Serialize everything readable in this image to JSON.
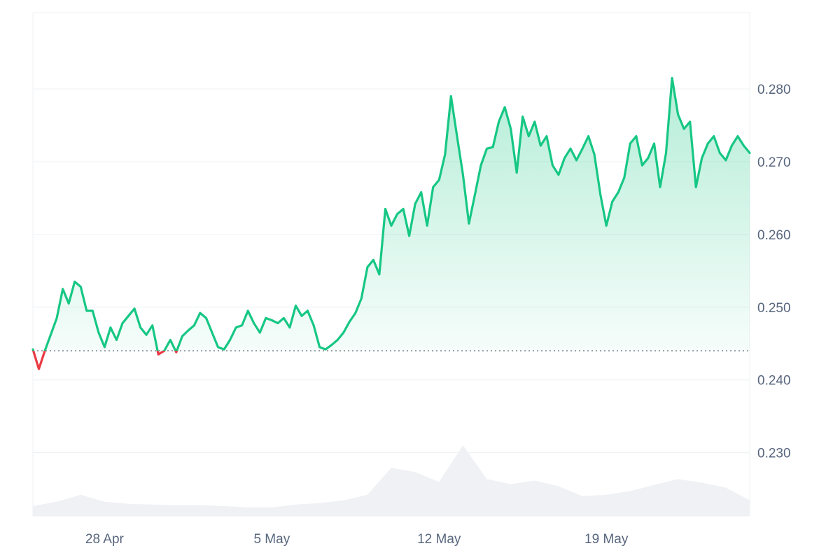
{
  "chart_data": {
    "type": "area",
    "title": "",
    "xlabel": "",
    "ylabel": "",
    "x_range": [
      "2024-04-25",
      "2024-05-25"
    ],
    "x_ticks": [
      {
        "date": "2024-04-28",
        "label": "28 Apr"
      },
      {
        "date": "2024-05-05",
        "label": "5 May"
      },
      {
        "date": "2024-05-12",
        "label": "12 May"
      },
      {
        "date": "2024-05-19",
        "label": "19 May"
      }
    ],
    "y_ticks": [
      "0.230",
      "0.240",
      "0.250",
      "0.260",
      "0.270",
      "0.280"
    ],
    "y_range": [
      0.2213,
      0.2905
    ],
    "baseline": 0.244,
    "grid": true,
    "colors": {
      "up": "#16c784",
      "down": "#ea3943",
      "volume": "#eff1f5",
      "grid": "#eef0f3"
    },
    "price_series": [
      [
        "2024-04-25",
        0.2442
      ],
      [
        "2024-04-25T06:00",
        0.2415
      ],
      [
        "2024-04-25T12:00",
        0.244
      ],
      [
        "2024-04-26",
        0.2485
      ],
      [
        "2024-04-26T06:00",
        0.2525
      ],
      [
        "2024-04-26T12:00",
        0.2505
      ],
      [
        "2024-04-26T18:00",
        0.2535
      ],
      [
        "2024-04-27",
        0.2528
      ],
      [
        "2024-04-27T06:00",
        0.2495
      ],
      [
        "2024-04-27T12:00",
        0.2495
      ],
      [
        "2024-04-27T18:00",
        0.2465
      ],
      [
        "2024-04-28",
        0.2445
      ],
      [
        "2024-04-28T06:00",
        0.2472
      ],
      [
        "2024-04-28T12:00",
        0.2455
      ],
      [
        "2024-04-28T18:00",
        0.2478
      ],
      [
        "2024-04-29",
        0.2488
      ],
      [
        "2024-04-29T06:00",
        0.2498
      ],
      [
        "2024-04-29T12:00",
        0.2472
      ],
      [
        "2024-04-29T18:00",
        0.2462
      ],
      [
        "2024-04-30",
        0.2475
      ],
      [
        "2024-04-30T06:00",
        0.2435
      ],
      [
        "2024-04-30T12:00",
        0.244
      ],
      [
        "2024-04-30T18:00",
        0.2455
      ],
      [
        "2024-05-01",
        0.2438
      ],
      [
        "2024-05-01T06:00",
        0.246
      ],
      [
        "2024-05-01T12:00",
        0.2468
      ],
      [
        "2024-05-01T18:00",
        0.2475
      ],
      [
        "2024-05-02",
        0.2492
      ],
      [
        "2024-05-02T06:00",
        0.2485
      ],
      [
        "2024-05-02T12:00",
        0.2465
      ],
      [
        "2024-05-02T18:00",
        0.2445
      ],
      [
        "2024-05-03",
        0.2442
      ],
      [
        "2024-05-03T06:00",
        0.2455
      ],
      [
        "2024-05-03T12:00",
        0.2472
      ],
      [
        "2024-05-03T18:00",
        0.2475
      ],
      [
        "2024-05-04",
        0.2495
      ],
      [
        "2024-05-04T06:00",
        0.2478
      ],
      [
        "2024-05-04T12:00",
        0.2465
      ],
      [
        "2024-05-04T18:00",
        0.2485
      ],
      [
        "2024-05-05",
        0.2482
      ],
      [
        "2024-05-05T06:00",
        0.2478
      ],
      [
        "2024-05-05T12:00",
        0.2485
      ],
      [
        "2024-05-05T18:00",
        0.2472
      ],
      [
        "2024-05-06",
        0.2502
      ],
      [
        "2024-05-06T06:00",
        0.2488
      ],
      [
        "2024-05-06T12:00",
        0.2495
      ],
      [
        "2024-05-06T18:00",
        0.2475
      ],
      [
        "2024-05-07",
        0.2445
      ],
      [
        "2024-05-07T06:00",
        0.2442
      ],
      [
        "2024-05-07T12:00",
        0.2448
      ],
      [
        "2024-05-07T18:00",
        0.2455
      ],
      [
        "2024-05-08",
        0.2465
      ],
      [
        "2024-05-08T06:00",
        0.248
      ],
      [
        "2024-05-08T12:00",
        0.2492
      ],
      [
        "2024-05-08T18:00",
        0.2512
      ],
      [
        "2024-05-09",
        0.2555
      ],
      [
        "2024-05-09T06:00",
        0.2565
      ],
      [
        "2024-05-09T12:00",
        0.2545
      ],
      [
        "2024-05-09T18:00",
        0.2635
      ],
      [
        "2024-05-10",
        0.2612
      ],
      [
        "2024-05-10T06:00",
        0.2628
      ],
      [
        "2024-05-10T12:00",
        0.2635
      ],
      [
        "2024-05-10T18:00",
        0.2598
      ],
      [
        "2024-05-11",
        0.2642
      ],
      [
        "2024-05-11T06:00",
        0.2658
      ],
      [
        "2024-05-11T12:00",
        0.2612
      ],
      [
        "2024-05-11T18:00",
        0.2665
      ],
      [
        "2024-05-12",
        0.2675
      ],
      [
        "2024-05-12T06:00",
        0.271
      ],
      [
        "2024-05-12T12:00",
        0.279
      ],
      [
        "2024-05-12T18:00",
        0.2735
      ],
      [
        "2024-05-13",
        0.2682
      ],
      [
        "2024-05-13T06:00",
        0.2615
      ],
      [
        "2024-05-13T12:00",
        0.2655
      ],
      [
        "2024-05-13T18:00",
        0.2695
      ],
      [
        "2024-05-14",
        0.2718
      ],
      [
        "2024-05-14T06:00",
        0.272
      ],
      [
        "2024-05-14T12:00",
        0.2755
      ],
      [
        "2024-05-14T18:00",
        0.2775
      ],
      [
        "2024-05-15",
        0.2745
      ],
      [
        "2024-05-15T06:00",
        0.2685
      ],
      [
        "2024-05-15T12:00",
        0.2762
      ],
      [
        "2024-05-15T18:00",
        0.2735
      ],
      [
        "2024-05-16",
        0.2755
      ],
      [
        "2024-05-16T06:00",
        0.2722
      ],
      [
        "2024-05-16T12:00",
        0.2735
      ],
      [
        "2024-05-16T18:00",
        0.2695
      ],
      [
        "2024-05-17",
        0.2682
      ],
      [
        "2024-05-17T06:00",
        0.2705
      ],
      [
        "2024-05-17T12:00",
        0.2718
      ],
      [
        "2024-05-17T18:00",
        0.2702
      ],
      [
        "2024-05-18",
        0.2718
      ],
      [
        "2024-05-18T06:00",
        0.2735
      ],
      [
        "2024-05-18T12:00",
        0.271
      ],
      [
        "2024-05-18T18:00",
        0.2655
      ],
      [
        "2024-05-19",
        0.2612
      ],
      [
        "2024-05-19T06:00",
        0.2645
      ],
      [
        "2024-05-19T12:00",
        0.2658
      ],
      [
        "2024-05-19T18:00",
        0.2678
      ],
      [
        "2024-05-20",
        0.2725
      ],
      [
        "2024-05-20T06:00",
        0.2735
      ],
      [
        "2024-05-20T12:00",
        0.2695
      ],
      [
        "2024-05-20T18:00",
        0.2705
      ],
      [
        "2024-05-21",
        0.2725
      ],
      [
        "2024-05-21T06:00",
        0.2665
      ],
      [
        "2024-05-21T12:00",
        0.2712
      ],
      [
        "2024-05-21T18:00",
        0.2815
      ],
      [
        "2024-05-22",
        0.2765
      ],
      [
        "2024-05-22T06:00",
        0.2745
      ],
      [
        "2024-05-22T12:00",
        0.2755
      ],
      [
        "2024-05-22T18:00",
        0.2665
      ],
      [
        "2024-05-23",
        0.2705
      ],
      [
        "2024-05-23T06:00",
        0.2725
      ],
      [
        "2024-05-23T12:00",
        0.2735
      ],
      [
        "2024-05-23T18:00",
        0.2712
      ],
      [
        "2024-05-24",
        0.2702
      ],
      [
        "2024-05-24T06:00",
        0.2722
      ],
      [
        "2024-05-24T12:00",
        0.2735
      ],
      [
        "2024-05-24T18:00",
        0.2722
      ],
      [
        "2024-05-25",
        0.2712
      ]
    ],
    "volume_series": {
      "unit": "relative to max",
      "values": [
        [
          "2024-04-25",
          0.14
        ],
        [
          "2024-04-26",
          0.2
        ],
        [
          "2024-04-27",
          0.3
        ],
        [
          "2024-04-28",
          0.2
        ],
        [
          "2024-04-29",
          0.17
        ],
        [
          "2024-04-30",
          0.16
        ],
        [
          "2024-05-01",
          0.15
        ],
        [
          "2024-05-02",
          0.15
        ],
        [
          "2024-05-03",
          0.14
        ],
        [
          "2024-05-04",
          0.12
        ],
        [
          "2024-05-05",
          0.12
        ],
        [
          "2024-05-06",
          0.16
        ],
        [
          "2024-05-07",
          0.18
        ],
        [
          "2024-05-08",
          0.22
        ],
        [
          "2024-05-09",
          0.3
        ],
        [
          "2024-05-10",
          0.68
        ],
        [
          "2024-05-11",
          0.62
        ],
        [
          "2024-05-12",
          0.48
        ],
        [
          "2024-05-13",
          1.0
        ],
        [
          "2024-05-14",
          0.52
        ],
        [
          "2024-05-15",
          0.45
        ],
        [
          "2024-05-16",
          0.5
        ],
        [
          "2024-05-17",
          0.42
        ],
        [
          "2024-05-18",
          0.28
        ],
        [
          "2024-05-19",
          0.3
        ],
        [
          "2024-05-20",
          0.35
        ],
        [
          "2024-05-21",
          0.44
        ],
        [
          "2024-05-22",
          0.52
        ],
        [
          "2024-05-23",
          0.47
        ],
        [
          "2024-05-24",
          0.4
        ],
        [
          "2024-05-25",
          0.22
        ]
      ]
    }
  }
}
